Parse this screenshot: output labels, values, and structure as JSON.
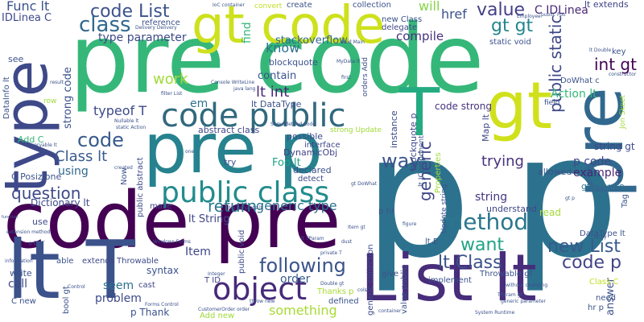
{
  "words": [
    {
      "text": "pre code",
      "color": "#35b779"
    },
    {
      "text": "p p",
      "color": "#2c728e"
    },
    {
      "text": "code pre",
      "color": "#440154"
    },
    {
      "text": "pre p",
      "color": "#26828e"
    },
    {
      "text": "List lt",
      "color": "#472d7b"
    },
    {
      "text": "lt T",
      "color": "#3b528b"
    },
    {
      "text": "type",
      "color": "#3e4989"
    },
    {
      "text": "pre",
      "color": "#31688e"
    },
    {
      "text": "gt",
      "color": "#d0e11c"
    },
    {
      "text": "gt code",
      "color": "#cde11d"
    },
    {
      "text": "code public",
      "color": "#30697e"
    },
    {
      "text": "T",
      "color": "#25ab82"
    },
    {
      "text": "public class",
      "color": "#228c8d"
    },
    {
      "text": "object",
      "color": "#472a7a"
    },
    {
      "text": "method",
      "color": "#2a778e"
    },
    {
      "text": "code List",
      "color": "#3b528b"
    },
    {
      "text": "class",
      "color": "#31688e"
    },
    {
      "text": "value",
      "color": "#424086"
    },
    {
      "text": "gt gt",
      "color": "#24868e"
    },
    {
      "text": "int gt",
      "color": "#440154"
    },
    {
      "text": "C IDLinea",
      "color": "#482878"
    },
    {
      "text": "question",
      "color": "#3e4989"
    },
    {
      "text": "code",
      "color": "#375a8c"
    },
    {
      "text": "Class lt",
      "color": "#375a8c"
    },
    {
      "text": "return",
      "color": "#2a788e"
    },
    {
      "text": "generic type",
      "color": "#2c728e"
    },
    {
      "text": "following",
      "color": "#3a548c"
    },
    {
      "text": "lt Class",
      "color": "#3b528b"
    },
    {
      "text": "code p",
      "color": "#414487"
    },
    {
      "text": "new List",
      "color": "#375a8c"
    },
    {
      "text": "want",
      "color": "#20a386"
    },
    {
      "text": "way",
      "color": "#3a548c"
    },
    {
      "text": "generic",
      "color": "#3f4788"
    },
    {
      "text": "public static",
      "color": "#3f4889"
    },
    {
      "text": "work",
      "color": "#a0da39"
    },
    {
      "text": "know",
      "color": "#2c728e"
    },
    {
      "text": "lt int",
      "color": "#482878"
    },
    {
      "text": "contain",
      "color": "#3a548c"
    },
    {
      "text": "typeof T",
      "color": "#3e4989"
    },
    {
      "text": "strong code",
      "color": "#3b528b"
    },
    {
      "text": "type parameter",
      "color": "#3e4989"
    },
    {
      "text": "compile",
      "color": "#46327e"
    },
    {
      "text": "stackoverflow",
      "color": "#31688e"
    },
    {
      "text": "href",
      "color": "#3b528b"
    },
    {
      "text": "will",
      "color": "#86d549"
    },
    {
      "text": "Action lt",
      "color": "#35b779"
    },
    {
      "text": "trying",
      "color": "#46327e"
    },
    {
      "text": "string",
      "color": "#453781"
    },
    {
      "text": "example",
      "color": "#482475"
    },
    {
      "text": "p code",
      "color": "#3e4989"
    },
    {
      "text": "string gt",
      "color": "#3e4989"
    },
    {
      "text": "gt private",
      "color": "#2c728e"
    },
    {
      "text": "using",
      "color": "#31688e"
    },
    {
      "text": "Item",
      "color": "#3f4788"
    },
    {
      "text": "problem",
      "color": "#3e4989"
    },
    {
      "text": "seem",
      "color": "#2c728e"
    },
    {
      "text": "order",
      "color": "#365c8d"
    },
    {
      "text": "something",
      "color": "#a8db34"
    },
    {
      "text": "call",
      "color": "#3e4989"
    },
    {
      "text": "syntax",
      "color": "#3b528b"
    },
    {
      "text": "p Thank",
      "color": "#3b528b"
    },
    {
      "text": "code strong",
      "color": "#46327e"
    },
    {
      "text": "answer",
      "color": "#3b528b"
    },
    {
      "text": "read",
      "color": "#a2da37"
    },
    {
      "text": "Map lt",
      "color": "#3f4788"
    },
    {
      "text": "Func lt",
      "color": "#3b528b"
    },
    {
      "text": "IDLinea C",
      "color": "#3e4989"
    },
    {
      "text": "lt extends",
      "color": "#414487"
    },
    {
      "text": "abstract class",
      "color": "#3f4788"
    },
    {
      "text": "lt String",
      "color": "#3f4788"
    },
    {
      "text": "DynamicObj",
      "color": "#414487"
    },
    {
      "text": "Foo lt",
      "color": "#20a386"
    },
    {
      "text": "find",
      "color": "#35b779"
    },
    {
      "text": "lt DataType",
      "color": "#3b528b"
    },
    {
      "text": "em",
      "color": "#2c728e"
    },
    {
      "text": "understand",
      "color": "#3f4788"
    },
    {
      "text": "instance",
      "color": "#3e4989"
    },
    {
      "text": "blockquote p",
      "color": "#3e4989"
    },
    {
      "text": "C Posizione",
      "color": "#3b528b"
    },
    {
      "text": "Dictionary lt",
      "color": "#3e4989"
    },
    {
      "text": "make",
      "color": "#3f4788"
    },
    {
      "text": "try",
      "color": "#3b528b"
    },
    {
      "text": "declared",
      "color": "#3b528b"
    },
    {
      "text": "detect",
      "color": "#3e4989"
    },
    {
      "text": "interface",
      "color": "#3f4788"
    },
    {
      "text": "possible",
      "color": "#3e4989"
    },
    {
      "text": "Properties",
      "color": "#a0da39"
    },
    {
      "text": "allowed",
      "color": "#3b528b"
    },
    {
      "text": "new Class",
      "color": "#3b528b"
    },
    {
      "text": "delegate",
      "color": "#3f4788"
    },
    {
      "text": "collection",
      "color": "#3b528b"
    },
    {
      "text": "create",
      "color": "#3b528b"
    },
    {
      "text": "convert",
      "color": "#c2df23"
    },
    {
      "text": "reference",
      "color": "#3b528b"
    },
    {
      "text": "Add C",
      "color": "#35b779"
    },
    {
      "text": "see",
      "color": "#3b528b"
    },
    {
      "text": "DataInfo lt",
      "color": "#3b528b"
    },
    {
      "text": "use",
      "color": "#3e4989"
    },
    {
      "text": "able",
      "color": "#3b528b"
    },
    {
      "text": "write",
      "color": "#3b528b"
    },
    {
      "text": "C new",
      "color": "#3b528b"
    },
    {
      "text": "bool gt",
      "color": "#3b528b"
    },
    {
      "text": "extends Throwable",
      "color": "#3e4989"
    },
    {
      "text": "T ID",
      "color": "#414487"
    },
    {
      "text": "cast",
      "color": "#3f4788"
    },
    {
      "text": "Add new",
      "color": "#a0da39"
    },
    {
      "text": "Thanks p",
      "color": "#a8db34"
    },
    {
      "text": "give",
      "color": "#3b528b"
    },
    {
      "text": "implement",
      "color": "#3b528b"
    },
    {
      "text": "defined",
      "color": "#3b528b"
    },
    {
      "text": "DataType lt",
      "color": "#3b528b"
    },
    {
      "text": "Throwable gt",
      "color": "#3b528b"
    },
    {
      "text": "Class C",
      "color": "#c2df23"
    },
    {
      "text": "need",
      "color": "#3b528b"
    },
    {
      "text": "hr p",
      "color": "#3b528b"
    },
    {
      "text": "lt E",
      "color": "#3b528b"
    },
    {
      "text": "p hr",
      "color": "#3b528b"
    },
    {
      "text": "DoWhat c",
      "color": "#3b528b"
    },
    {
      "text": "orders Add",
      "color": "#3b528b"
    },
    {
      "text": "key",
      "color": "#3b528b"
    },
    {
      "text": "static void",
      "color": "#3b528b"
    },
    {
      "text": "Tag",
      "color": "#3b528b"
    },
    {
      "text": "Now",
      "color": "#3b528b"
    },
    {
      "text": "public abstract",
      "color": "#3e4989"
    },
    {
      "text": "public void",
      "color": "#3e4989"
    },
    {
      "text": "generic collection",
      "color": "#3e4989"
    },
    {
      "text": "value public",
      "color": "#3b528b"
    },
    {
      "text": "lt JComponent",
      "color": "#3b528b"
    },
    {
      "text": "Update string",
      "color": "#3b528b"
    },
    {
      "text": "strong Update",
      "color": "#a0da39"
    },
    {
      "text": "blockquote",
      "color": "#3b528b"
    },
    {
      "text": "row",
      "color": "#a0da39"
    },
    {
      "text": "field",
      "color": "#3b528b"
    },
    {
      "text": "Jon Skeet",
      "color": "#a0da39"
    },
    {
      "text": "IoC container",
      "color": "#3b528b"
    },
    {
      "text": "Delivery Delivery",
      "color": "#3b528b"
    },
    {
      "text": "Console WriteLine",
      "color": "#3b528b"
    },
    {
      "text": "java lang",
      "color": "#3b528b"
    },
    {
      "text": "filter List",
      "color": "#3b528b"
    },
    {
      "text": "Nullable lt",
      "color": "#3b528b"
    },
    {
      "text": "static Action",
      "color": "#3b528b"
    },
    {
      "text": "Integer",
      "color": "#3b528b"
    },
    {
      "text": "MyTemplate lt",
      "color": "#3b528b"
    },
    {
      "text": "lt TParam",
      "color": "#3b528b"
    },
    {
      "text": "private T",
      "color": "#3b528b"
    },
    {
      "text": "throw new",
      "color": "#3b528b"
    },
    {
      "text": "Double gt",
      "color": "#3b528b"
    },
    {
      "text": "CustomerOrder order",
      "color": "#3b528b"
    },
    {
      "text": "Forms Control",
      "color": "#3b528b"
    },
    {
      "text": "Windows Forms",
      "color": "#3b528b"
    },
    {
      "text": "extension method",
      "color": "#3b528b"
    },
    {
      "text": "information",
      "color": "#3b528b"
    },
    {
      "text": "function",
      "color": "#3b528b"
    },
    {
      "text": "p EDIT",
      "color": "#3b528b"
    },
    {
      "text": "IQueryable lt",
      "color": "#3b528b"
    },
    {
      "text": "created",
      "color": "#3b528b"
    },
    {
      "text": "result",
      "color": "#3b528b"
    },
    {
      "text": "container",
      "color": "#3b528b"
    },
    {
      "text": "without changing",
      "color": "#3b528b"
    },
    {
      "text": "generic parameter",
      "color": "#3b528b"
    },
    {
      "text": "TParam gt",
      "color": "#3b528b"
    },
    {
      "text": "System Runtime",
      "color": "#3b528b"
    },
    {
      "text": "figure",
      "color": "#3b528b"
    },
    {
      "text": "array",
      "color": "#3b528b"
    },
    {
      "text": "gt p",
      "color": "#3b528b"
    },
    {
      "text": "gt DoWhat",
      "color": "#3b528b"
    },
    {
      "text": "Employee",
      "color": "#3b528b"
    },
    {
      "text": "public Foo",
      "color": "#3b528b"
    },
    {
      "text": "lt Double",
      "color": "#3b528b"
    },
    {
      "text": "constructor",
      "color": "#3b528b"
    },
    {
      "text": "void Main",
      "color": "#3b528b"
    },
    {
      "text": "MyData lt",
      "color": "#3b528b"
    },
    {
      "text": "SomeMethod code",
      "color": "#3b528b"
    },
    {
      "text": "Control",
      "color": "#3b528b"
    },
    {
      "text": "Item gt",
      "color": "#3b528b"
    },
    {
      "text": "first",
      "color": "#3b528b"
    },
    {
      "text": "cols",
      "color": "#3b528b"
    },
    {
      "text": "dust",
      "color": "#3b528b"
    },
    {
      "text": "one",
      "color": "#3b528b"
    }
  ]
}
